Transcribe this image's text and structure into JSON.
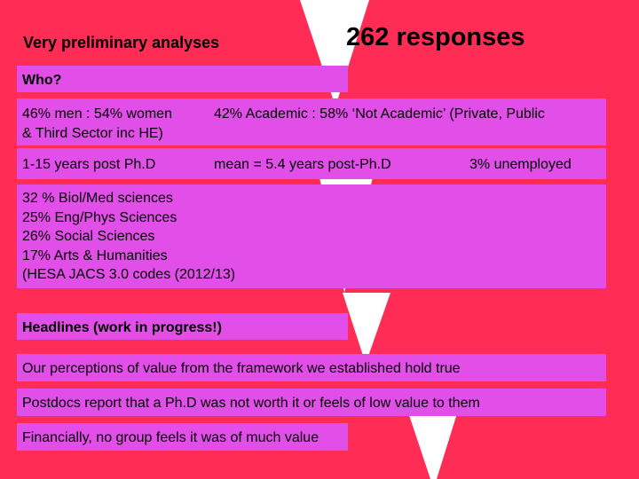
{
  "slide": {
    "title_left": "Very preliminary analyses",
    "title_right": "262 responses",
    "who_heading": "Who?",
    "gender_line1": "46% men : 54% women",
    "gender_line2": "& Third Sector inc HE)",
    "academic": "42% Academic : 58% ‘Not Academic’ (Private, Public",
    "years": "1-15 years post Ph.D",
    "mean": "mean = 5.4 years post-Ph.D",
    "unemployed": "3% unemployed",
    "fields": [
      "32 % Biol/Med sciences",
      "25% Eng/Phys Sciences",
      "26% Social Sciences",
      "17% Arts & Humanities",
      "(HESA JACS 3.0 codes (2012/13)"
    ],
    "headlines_heading": "Headlines (work in progress!)",
    "headlines": [
      "Our perceptions of value from the framework we established hold true",
      "Postdocs report that a Ph.D was not worth it or feels of low value to them",
      "Financially, no group feels it was of much value"
    ]
  },
  "colors": {
    "background": "#ff2d55",
    "box": "#e14fe8",
    "triangle": "#ffffff"
  }
}
